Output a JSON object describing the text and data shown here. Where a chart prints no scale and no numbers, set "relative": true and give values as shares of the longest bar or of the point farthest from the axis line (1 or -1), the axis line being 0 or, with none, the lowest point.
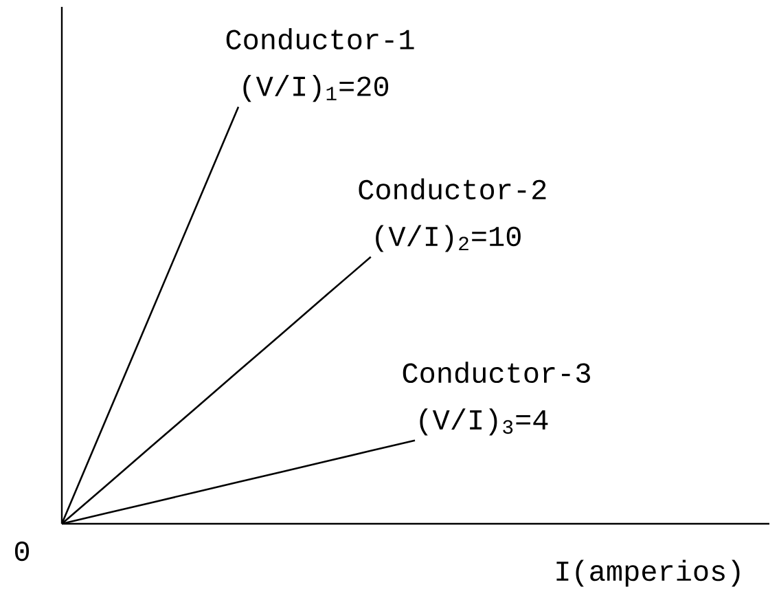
{
  "chart_data": {
    "type": "line",
    "relative": true,
    "xlabel": "I(amperios)",
    "categories": [
      null,
      null,
      null,
      null,
      null,
      null,
      null,
      null,
      null
    ],
    "series": [
      {
        "name": "Conductor-1",
        "color": "#000000",
        "values": [
          0,
          0.25,
          0.5,
          0.75,
          1,
          null,
          null,
          null,
          null
        ]
      },
      {
        "name": "Conductor-2",
        "color": "#000000",
        "values": [
          0,
          0.091,
          0.183,
          0.274,
          0.366,
          0.457,
          0.549,
          0.64,
          null
        ]
      },
      {
        "name": "Conductor-3",
        "color": "#000000",
        "values": [
          0,
          0.025,
          0.05,
          0.075,
          0.1,
          0.125,
          0.15,
          0.175,
          0.2
        ]
      }
    ],
    "annotations": [
      "0",
      "(V/I)$_{1}$=20",
      "(V/I)$_{2}$=10",
      "(V/I)$_{3}$=4"
    ],
    "marker": "none",
    "line_style": "solid"
  }
}
